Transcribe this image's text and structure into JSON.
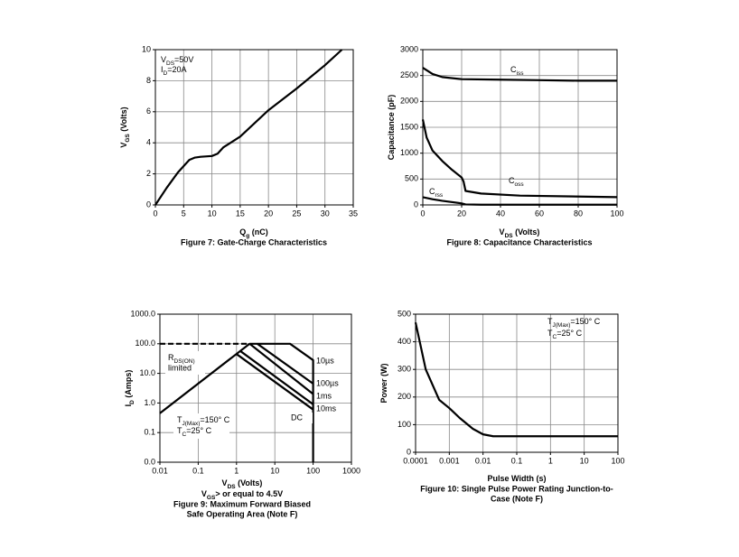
{
  "chart_data": [
    {
      "type": "line",
      "grid": true,
      "xlog": false,
      "ylog": false,
      "xlim": [
        0,
        35
      ],
      "ylim": [
        0,
        10
      ],
      "xticks": [
        0,
        5,
        10,
        15,
        20,
        25,
        30,
        35
      ],
      "yticks": [
        0,
        2,
        4,
        6,
        8,
        10
      ],
      "x_label": [
        "Q",
        "g",
        " (nC)"
      ],
      "y_label": [
        "V",
        "GS",
        " (Volts)"
      ],
      "captions": [
        "Figure 7: Gate-Charge Characteristics"
      ],
      "annotations": [
        [
          "V",
          "DS",
          "=50V"
        ],
        [
          "I",
          "D",
          "=20A"
        ]
      ],
      "series": [
        {
          "color": "#000000",
          "x": [
            0,
            2,
            4,
            6,
            7,
            8,
            10,
            11,
            12,
            15,
            20,
            25,
            30,
            33
          ],
          "values": [
            0,
            1.1,
            2.1,
            2.9,
            3.05,
            3.1,
            3.15,
            3.3,
            3.7,
            4.4,
            6.1,
            7.5,
            9.0,
            10
          ]
        }
      ]
    },
    {
      "type": "line",
      "grid": true,
      "xlog": false,
      "ylog": false,
      "xlim": [
        0,
        100
      ],
      "ylim": [
        0,
        3000
      ],
      "xticks": [
        0,
        20,
        40,
        60,
        80,
        100
      ],
      "yticks": [
        0,
        500,
        1000,
        1500,
        2000,
        2500,
        3000
      ],
      "x_label": [
        "V",
        "DS",
        " (Volts)"
      ],
      "y_label": [
        "Capacitance (pF)"
      ],
      "captions": [
        "Figure 8: Capacitance Characteristics"
      ],
      "annotations": [],
      "series": [
        {
          "name": [
            "C",
            "iss"
          ],
          "color": "#000000",
          "x": [
            0,
            5,
            10,
            20,
            40,
            60,
            80,
            100
          ],
          "values": [
            2650,
            2530,
            2470,
            2430,
            2420,
            2410,
            2400,
            2400
          ]
        },
        {
          "name": [
            "C",
            "oss"
          ],
          "color": "#000000",
          "x": [
            0,
            2,
            5,
            10,
            15,
            20,
            21,
            22,
            30,
            50,
            100
          ],
          "values": [
            1650,
            1300,
            1050,
            850,
            680,
            530,
            450,
            270,
            220,
            180,
            150
          ]
        },
        {
          "name": [
            "C",
            "rss"
          ],
          "color": "#000000",
          "x": [
            0,
            5,
            10,
            20,
            22,
            30,
            100
          ],
          "values": [
            150,
            110,
            80,
            30,
            10,
            5,
            5
          ]
        }
      ]
    },
    {
      "type": "line",
      "grid": true,
      "xlog": true,
      "ylog": true,
      "xlim": [
        0.01,
        1000
      ],
      "ylim": [
        0.01,
        1000
      ],
      "xticks": [
        0.01,
        0.1,
        1,
        10,
        100,
        1000
      ],
      "yticks": [
        {
          "value": 0.01,
          "label": "0.0"
        },
        {
          "value": 0.1,
          "label": "0.1"
        },
        {
          "value": 1,
          "label": "1.0"
        },
        {
          "value": 10,
          "label": "10.0"
        },
        {
          "value": 100,
          "label": "100.0"
        },
        {
          "value": 1000,
          "label": "1000.0"
        }
      ],
      "x_label": [
        "V",
        "DS",
        " (Volts)"
      ],
      "y_label": [
        "I",
        "D",
        " (Amps)"
      ],
      "captions": [
        [
          "V",
          "GS",
          "> or equal to 4.5V"
        ],
        "Figure 9: Maximum Forward Biased",
        "Safe Operating Area (Note F)"
      ],
      "annotations": [
        [
          "R",
          "DS(ON)"
        ],
        "limited",
        [
          "T",
          "J(Max)",
          "=150° C"
        ],
        [
          "T",
          "C",
          "=25° C"
        ]
      ],
      "series": [
        {
          "color": "#000000",
          "dashed": true,
          "x": [
            0.01,
            2.2
          ],
          "values": [
            100,
            100
          ]
        },
        {
          "color": "#000000",
          "x": [
            0.01,
            2.2
          ],
          "values": [
            0.45,
            100
          ]
        },
        {
          "name": "10µs",
          "color": "#000000",
          "x": [
            2.2,
            25,
            100,
            100
          ],
          "values": [
            100,
            100,
            28,
            0.01
          ]
        },
        {
          "name": "100µs",
          "color": "#000000",
          "x": [
            3.5,
            100
          ],
          "values": [
            100,
            4.5
          ]
        },
        {
          "name": "1ms",
          "color": "#000000",
          "x": [
            2.2,
            100
          ],
          "values": [
            100,
            2
          ]
        },
        {
          "name": "10ms",
          "color": "#000000",
          "x": [
            1.3,
            100
          ],
          "values": [
            55,
            0.9
          ]
        },
        {
          "name": "DC",
          "color": "#000000",
          "x": [
            1,
            100
          ],
          "values": [
            45,
            0.6
          ]
        }
      ]
    },
    {
      "type": "line",
      "grid": true,
      "xlog": true,
      "ylog": false,
      "xlim": [
        0.0001,
        100
      ],
      "ylim": [
        0,
        500
      ],
      "xticks": [
        0.0001,
        0.001,
        0.01,
        0.1,
        1,
        10,
        100
      ],
      "yticks": [
        0,
        100,
        200,
        300,
        400,
        500
      ],
      "x_label": [
        "Pulse Width (s)"
      ],
      "y_label": [
        "Power (W)"
      ],
      "captions": [
        "Figure 10: Single Pulse Power Rating Junction-to-",
        "Case (Note F)"
      ],
      "annotations": [
        [
          "T",
          "J(Max)",
          "=150° C"
        ],
        [
          "T",
          "C",
          "=25° C"
        ]
      ],
      "series": [
        {
          "color": "#000000",
          "x": [
            0.0001,
            0.0002,
            0.0005,
            0.001,
            0.002,
            0.005,
            0.01,
            0.02,
            0.1,
            100
          ],
          "values": [
            470,
            300,
            190,
            160,
            125,
            85,
            65,
            58,
            58,
            58
          ]
        }
      ]
    }
  ]
}
